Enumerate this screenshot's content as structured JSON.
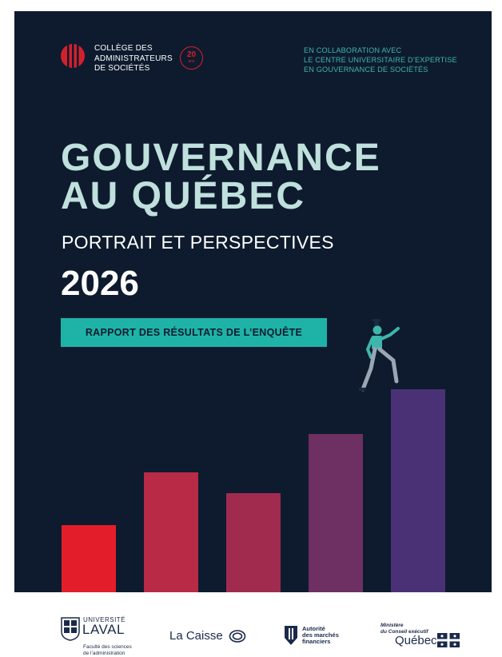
{
  "header": {
    "organization_lines": [
      "COLLÈGE DES",
      "ADMINISTRATEURS",
      "DE SOCIÉTÉS"
    ],
    "anniversary_number": "20",
    "anniversary_word": "ans",
    "collaboration_lines": [
      "EN COLLABORATION AVEC",
      "LE CENTRE UNIVERSITAIRE D’EXPERTISE",
      "EN GOUVERNANCE DE SOCIÉTÉS"
    ]
  },
  "title_lines": [
    "GOUVERNANCE",
    "AU QUÉBEC"
  ],
  "subtitle": "PORTRAIT ET PERSPECTIVES",
  "year": "2026",
  "report_button": "RAPPORT DES RÉSULTATS DE L’ENQUÊTE",
  "colors": {
    "background": "#0e1b2e",
    "title": "#bfe0dc",
    "accent_teal": "#1fb3a8",
    "brand_red": "#d3202e",
    "bars": [
      "#e31e2a",
      "#b82a46",
      "#a02b4e",
      "#6e2f63",
      "#4a3175"
    ]
  },
  "illustration": {
    "type": "bar steps with climbing figure",
    "bar_levels": [
      0.33,
      0.59,
      0.49,
      0.78,
      1.0
    ]
  },
  "footer": {
    "ulaval": {
      "line1": "UNIVERSITÉ",
      "line2": "LAVAL",
      "faculty_lines": [
        "Faculté des sciences",
        "de l’administration"
      ]
    },
    "la_caisse": "La Caisse",
    "amf_lines": [
      "Autorité",
      "des marchés",
      "financiers"
    ],
    "quebec": {
      "ministry_lines": [
        "Ministère",
        "du Conseil exécutif"
      ],
      "name": "Québec"
    }
  }
}
